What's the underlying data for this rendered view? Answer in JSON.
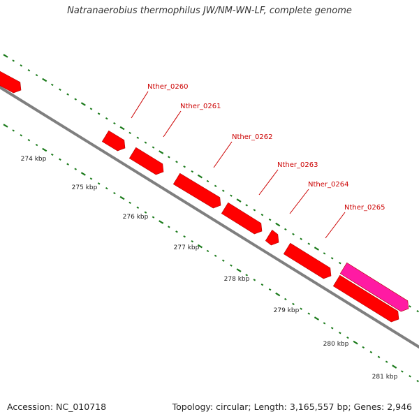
{
  "title": "Natranaerobius thermophilus JW/NM-WN-LF, complete genome",
  "accession": "Accession: NC_010718",
  "stats": "Topology: circular; Length: 3,165,557 bp; Genes: 2,946",
  "colors": {
    "backbone": "#7f7f7f",
    "gene": "#ff0000",
    "gene_highlight": "#ff1aa3",
    "label": "#cc0000",
    "tick": "#1a7a1a"
  },
  "scale_labels": [
    "274 kbp",
    "275 kbp",
    "276 kbp",
    "277 kbp",
    "278 kbp",
    "279 kbp",
    "280 kbp",
    "281 kbp"
  ],
  "gene_labels": [
    "Nther_0260",
    "Nther_0261",
    "Nther_0262",
    "Nther_0263",
    "Nther_0264",
    "Nther_0265"
  ]
}
